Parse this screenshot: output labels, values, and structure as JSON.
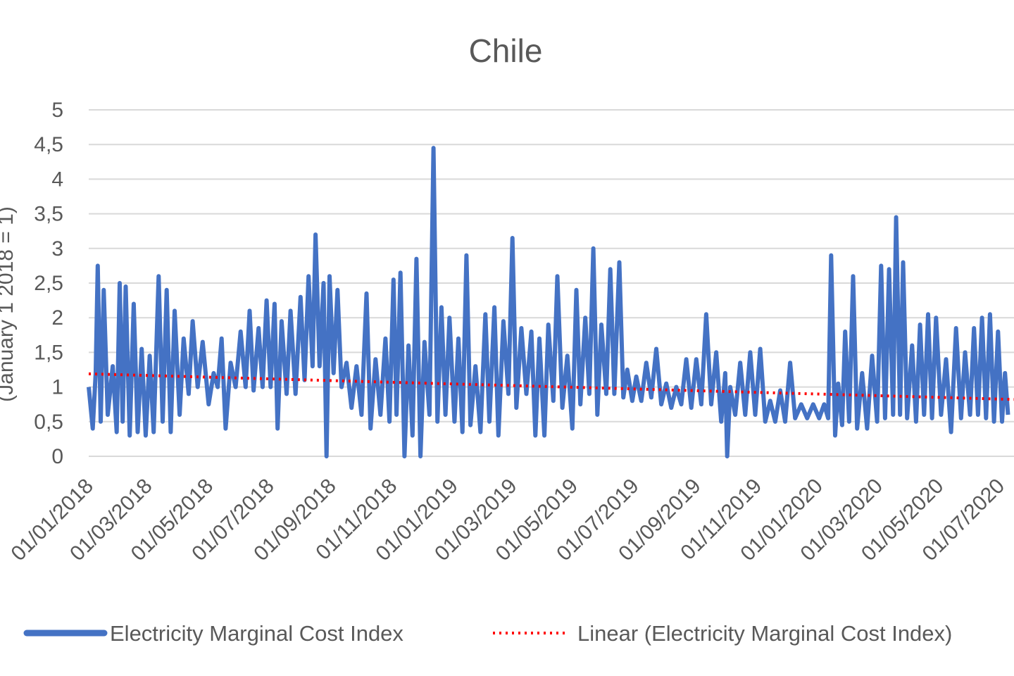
{
  "chart_data": {
    "type": "line",
    "title": "Chile",
    "xlabel": "",
    "ylabel": "(January 1 2018 = 1)",
    "ylim": [
      0,
      5
    ],
    "x_range": [
      "2018-01-01",
      "2020-07-15"
    ],
    "yticks": [
      "0",
      "0,5",
      "1",
      "1,5",
      "2",
      "2,5",
      "3",
      "3,5",
      "4",
      "4,5",
      "5"
    ],
    "xticks": [
      "01/01/2018",
      "01/03/2018",
      "01/05/2018",
      "01/07/2018",
      "01/09/2018",
      "01/11/2018",
      "01/01/2019",
      "01/03/2019",
      "01/05/2019",
      "01/07/2019",
      "01/09/2019",
      "01/11/2019",
      "01/01/2020",
      "01/03/2020",
      "01/05/2020",
      "01/07/2020"
    ],
    "grid": true,
    "legend_position": "bottom",
    "series": [
      {
        "name": "Electricity Marginal Cost Index",
        "color": "#4472C4",
        "style": "solid",
        "points": [
          [
            "2018-01-01",
            1.0
          ],
          [
            "2018-01-05",
            0.4
          ],
          [
            "2018-01-08",
            1.2
          ],
          [
            "2018-01-10",
            2.75
          ],
          [
            "2018-01-13",
            0.5
          ],
          [
            "2018-01-16",
            2.4
          ],
          [
            "2018-01-20",
            0.6
          ],
          [
            "2018-01-25",
            1.3
          ],
          [
            "2018-01-29",
            0.35
          ],
          [
            "2018-02-01",
            2.5
          ],
          [
            "2018-02-04",
            0.5
          ],
          [
            "2018-02-07",
            2.45
          ],
          [
            "2018-02-11",
            0.3
          ],
          [
            "2018-02-15",
            2.2
          ],
          [
            "2018-02-19",
            0.35
          ],
          [
            "2018-02-23",
            1.55
          ],
          [
            "2018-02-27",
            0.3
          ],
          [
            "2018-03-03",
            1.45
          ],
          [
            "2018-03-07",
            0.35
          ],
          [
            "2018-03-12",
            2.6
          ],
          [
            "2018-03-16",
            0.5
          ],
          [
            "2018-03-20",
            2.4
          ],
          [
            "2018-03-24",
            0.35
          ],
          [
            "2018-03-28",
            2.1
          ],
          [
            "2018-04-02",
            0.6
          ],
          [
            "2018-04-06",
            1.7
          ],
          [
            "2018-04-11",
            0.9
          ],
          [
            "2018-04-15",
            1.95
          ],
          [
            "2018-04-20",
            1.0
          ],
          [
            "2018-04-25",
            1.65
          ],
          [
            "2018-05-01",
            0.75
          ],
          [
            "2018-05-06",
            1.2
          ],
          [
            "2018-05-10",
            1.0
          ],
          [
            "2018-05-14",
            1.7
          ],
          [
            "2018-05-18",
            0.4
          ],
          [
            "2018-05-23",
            1.35
          ],
          [
            "2018-05-28",
            1.0
          ],
          [
            "2018-06-02",
            1.8
          ],
          [
            "2018-06-07",
            1.0
          ],
          [
            "2018-06-11",
            2.1
          ],
          [
            "2018-06-15",
            0.95
          ],
          [
            "2018-06-20",
            1.85
          ],
          [
            "2018-06-24",
            1.0
          ],
          [
            "2018-06-28",
            2.25
          ],
          [
            "2018-07-02",
            1.0
          ],
          [
            "2018-07-06",
            2.2
          ],
          [
            "2018-07-09",
            0.4
          ],
          [
            "2018-07-13",
            1.95
          ],
          [
            "2018-07-18",
            0.9
          ],
          [
            "2018-07-22",
            2.1
          ],
          [
            "2018-07-27",
            0.9
          ],
          [
            "2018-08-01",
            2.3
          ],
          [
            "2018-08-05",
            1.1
          ],
          [
            "2018-08-09",
            2.6
          ],
          [
            "2018-08-13",
            1.3
          ],
          [
            "2018-08-16",
            3.2
          ],
          [
            "2018-08-20",
            1.3
          ],
          [
            "2018-08-24",
            2.5
          ],
          [
            "2018-08-27",
            0.0
          ],
          [
            "2018-08-30",
            2.6
          ],
          [
            "2018-09-03",
            1.2
          ],
          [
            "2018-09-07",
            2.4
          ],
          [
            "2018-09-11",
            1.0
          ],
          [
            "2018-09-16",
            1.35
          ],
          [
            "2018-09-21",
            0.7
          ],
          [
            "2018-09-26",
            1.3
          ],
          [
            "2018-10-01",
            0.6
          ],
          [
            "2018-10-06",
            2.35
          ],
          [
            "2018-10-10",
            0.4
          ],
          [
            "2018-10-15",
            1.4
          ],
          [
            "2018-10-20",
            0.6
          ],
          [
            "2018-10-25",
            1.7
          ],
          [
            "2018-10-29",
            0.5
          ],
          [
            "2018-11-02",
            2.55
          ],
          [
            "2018-11-05",
            0.6
          ],
          [
            "2018-11-09",
            2.65
          ],
          [
            "2018-11-13",
            0.0
          ],
          [
            "2018-11-17",
            1.6
          ],
          [
            "2018-11-21",
            0.3
          ],
          [
            "2018-11-25",
            2.85
          ],
          [
            "2018-11-29",
            0.0
          ],
          [
            "2018-12-03",
            1.65
          ],
          [
            "2018-12-08",
            0.6
          ],
          [
            "2018-12-12",
            4.45
          ],
          [
            "2018-12-16",
            0.5
          ],
          [
            "2018-12-20",
            2.15
          ],
          [
            "2018-12-24",
            0.6
          ],
          [
            "2018-12-28",
            2.0
          ],
          [
            "2019-01-02",
            0.5
          ],
          [
            "2019-01-06",
            1.7
          ],
          [
            "2019-01-10",
            0.35
          ],
          [
            "2019-01-14",
            2.9
          ],
          [
            "2019-01-18",
            0.45
          ],
          [
            "2019-01-23",
            1.3
          ],
          [
            "2019-01-28",
            0.35
          ],
          [
            "2019-02-02",
            2.05
          ],
          [
            "2019-02-06",
            0.5
          ],
          [
            "2019-02-11",
            2.15
          ],
          [
            "2019-02-15",
            0.3
          ],
          [
            "2019-02-20",
            1.95
          ],
          [
            "2019-02-25",
            0.9
          ],
          [
            "2019-03-01",
            3.15
          ],
          [
            "2019-03-05",
            0.7
          ],
          [
            "2019-03-10",
            1.85
          ],
          [
            "2019-03-15",
            0.9
          ],
          [
            "2019-03-20",
            1.8
          ],
          [
            "2019-03-24",
            0.3
          ],
          [
            "2019-03-28",
            1.7
          ],
          [
            "2019-04-02",
            0.3
          ],
          [
            "2019-04-06",
            1.9
          ],
          [
            "2019-04-11",
            0.8
          ],
          [
            "2019-04-15",
            2.6
          ],
          [
            "2019-04-20",
            0.7
          ],
          [
            "2019-04-25",
            1.45
          ],
          [
            "2019-04-30",
            0.4
          ],
          [
            "2019-05-04",
            2.4
          ],
          [
            "2019-05-08",
            0.75
          ],
          [
            "2019-05-13",
            2.0
          ],
          [
            "2019-05-17",
            0.9
          ],
          [
            "2019-05-21",
            3.0
          ],
          [
            "2019-05-25",
            0.6
          ],
          [
            "2019-05-29",
            1.9
          ],
          [
            "2019-06-03",
            0.9
          ],
          [
            "2019-06-07",
            2.7
          ],
          [
            "2019-06-11",
            0.9
          ],
          [
            "2019-06-16",
            2.8
          ],
          [
            "2019-06-20",
            0.85
          ],
          [
            "2019-06-24",
            1.25
          ],
          [
            "2019-06-29",
            0.8
          ],
          [
            "2019-07-03",
            1.15
          ],
          [
            "2019-07-08",
            0.8
          ],
          [
            "2019-07-13",
            1.35
          ],
          [
            "2019-07-18",
            0.85
          ],
          [
            "2019-07-23",
            1.55
          ],
          [
            "2019-07-28",
            0.75
          ],
          [
            "2019-08-02",
            1.05
          ],
          [
            "2019-08-07",
            0.7
          ],
          [
            "2019-08-12",
            1.0
          ],
          [
            "2019-08-17",
            0.75
          ],
          [
            "2019-08-22",
            1.4
          ],
          [
            "2019-08-27",
            0.7
          ],
          [
            "2019-09-01",
            1.4
          ],
          [
            "2019-09-06",
            0.75
          ],
          [
            "2019-09-11",
            2.05
          ],
          [
            "2019-09-16",
            0.75
          ],
          [
            "2019-09-21",
            1.5
          ],
          [
            "2019-09-26",
            0.5
          ],
          [
            "2019-09-30",
            1.2
          ],
          [
            "2019-10-02",
            0.0
          ],
          [
            "2019-10-05",
            1.0
          ],
          [
            "2019-10-10",
            0.6
          ],
          [
            "2019-10-15",
            1.35
          ],
          [
            "2019-10-20",
            0.6
          ],
          [
            "2019-10-25",
            1.5
          ],
          [
            "2019-10-30",
            0.6
          ],
          [
            "2019-11-04",
            1.55
          ],
          [
            "2019-11-09",
            0.5
          ],
          [
            "2019-11-14",
            0.8
          ],
          [
            "2019-11-19",
            0.5
          ],
          [
            "2019-11-24",
            0.95
          ],
          [
            "2019-11-29",
            0.5
          ],
          [
            "2019-12-04",
            1.35
          ],
          [
            "2019-12-09",
            0.55
          ],
          [
            "2019-12-15",
            0.75
          ],
          [
            "2019-12-21",
            0.55
          ],
          [
            "2019-12-27",
            0.75
          ],
          [
            "2020-01-02",
            0.55
          ],
          [
            "2020-01-07",
            0.75
          ],
          [
            "2020-01-11",
            0.55
          ],
          [
            "2020-01-14",
            2.9
          ],
          [
            "2020-01-18",
            0.3
          ],
          [
            "2020-01-21",
            1.05
          ],
          [
            "2020-01-25",
            0.45
          ],
          [
            "2020-01-28",
            1.8
          ],
          [
            "2020-02-01",
            0.5
          ],
          [
            "2020-02-05",
            2.6
          ],
          [
            "2020-02-09",
            0.4
          ],
          [
            "2020-02-14",
            1.2
          ],
          [
            "2020-02-19",
            0.4
          ],
          [
            "2020-02-24",
            1.45
          ],
          [
            "2020-02-29",
            0.5
          ],
          [
            "2020-03-04",
            2.75
          ],
          [
            "2020-03-08",
            0.55
          ],
          [
            "2020-03-12",
            2.7
          ],
          [
            "2020-03-16",
            0.6
          ],
          [
            "2020-03-19",
            3.45
          ],
          [
            "2020-03-23",
            0.6
          ],
          [
            "2020-03-26",
            2.8
          ],
          [
            "2020-03-30",
            0.55
          ],
          [
            "2020-04-04",
            1.6
          ],
          [
            "2020-04-08",
            0.5
          ],
          [
            "2020-04-12",
            1.9
          ],
          [
            "2020-04-16",
            0.6
          ],
          [
            "2020-04-20",
            2.05
          ],
          [
            "2020-04-24",
            0.55
          ],
          [
            "2020-04-28",
            2.0
          ],
          [
            "2020-05-03",
            0.6
          ],
          [
            "2020-05-08",
            1.4
          ],
          [
            "2020-05-13",
            0.35
          ],
          [
            "2020-05-18",
            1.85
          ],
          [
            "2020-05-23",
            0.55
          ],
          [
            "2020-05-27",
            1.5
          ],
          [
            "2020-06-01",
            0.6
          ],
          [
            "2020-06-05",
            1.85
          ],
          [
            "2020-06-09",
            0.6
          ],
          [
            "2020-06-13",
            2.0
          ],
          [
            "2020-06-17",
            0.55
          ],
          [
            "2020-06-21",
            2.05
          ],
          [
            "2020-06-25",
            0.5
          ],
          [
            "2020-06-29",
            1.8
          ],
          [
            "2020-07-03",
            0.5
          ],
          [
            "2020-07-06",
            1.2
          ],
          [
            "2020-07-09",
            0.6
          ]
        ]
      },
      {
        "name": "Linear (Electricity Marginal Cost Index)",
        "color": "#FF0000",
        "style": "dotted",
        "points": [
          [
            "2018-01-01",
            1.19
          ],
          [
            "2020-07-15",
            0.82
          ]
        ]
      }
    ]
  }
}
